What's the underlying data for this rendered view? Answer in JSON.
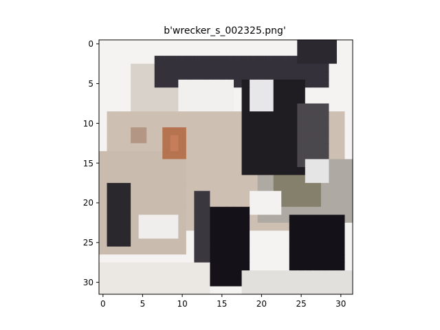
{
  "figure": {
    "title": "b'wrecker_s_002325.png'",
    "x_ticks": [
      "0",
      "5",
      "10",
      "15",
      "20",
      "25",
      "30"
    ],
    "y_ticks": [
      "0",
      "5",
      "10",
      "15",
      "20",
      "25",
      "30"
    ]
  },
  "image": {
    "grid_size": 32,
    "description_colors": {
      "background": "#f4f3f1",
      "vehicle_body": "#cdbfb1",
      "dark_parts": "#1f1c22",
      "tires": "#141218",
      "rust_accent": "#b5744f",
      "olive_panel": "#85806b"
    }
  }
}
